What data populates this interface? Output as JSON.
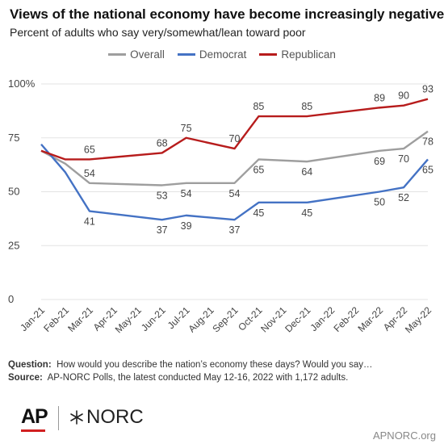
{
  "header": {
    "title": "Views of the national economy have become increasingly negative",
    "subtitle": "Percent of adults who say very/somewhat/lean toward poor"
  },
  "footer": {
    "question_label": "Question:",
    "question_text": "How would you describe the nation’s economy these days? Would you say…",
    "source_label": "Source:",
    "source_text": "AP-NORC Polls, the latest conducted May 12-16, 2022 with 1,172 adults.",
    "logo_ap": "AP",
    "logo_norc": "NORC",
    "url": "APNORC.org"
  },
  "chart_data": {
    "type": "line",
    "categories": [
      "Jan-21",
      "Feb-21",
      "Mar-21",
      "Apr-21",
      "May-21",
      "Jun-21",
      "Jul-21",
      "Aug-21",
      "Sep-21",
      "Oct-21",
      "Nov-21",
      "Dec-21",
      "Jan-22",
      "Feb-22",
      "Mar-22",
      "Apr-22",
      "May-22"
    ],
    "ylim": [
      0,
      100
    ],
    "yticks": [
      0,
      25,
      50,
      75,
      100
    ],
    "ytick_labels": [
      "0",
      "25",
      "50",
      "75",
      "100%"
    ],
    "grid": true,
    "legend_position": "top-center",
    "series": [
      {
        "name": "Overall",
        "color": "#9e9e9e",
        "points": [
          {
            "x": "Jan-21",
            "y": 69
          },
          {
            "x": "Feb-21",
            "y": 63
          },
          {
            "x": "Mar-21",
            "y": 54
          },
          {
            "x": "Jun-21",
            "y": 53
          },
          {
            "x": "Jul-21",
            "y": 54
          },
          {
            "x": "Sep-21",
            "y": 54
          },
          {
            "x": "Oct-21",
            "y": 65
          },
          {
            "x": "Dec-21",
            "y": 64
          },
          {
            "x": "Mar-22",
            "y": 69
          },
          {
            "x": "Apr-22",
            "y": 70
          },
          {
            "x": "May-22",
            "y": 78
          }
        ],
        "labels": [
          {
            "x": "Mar-21",
            "y": 54,
            "text": "54",
            "pos": "above"
          },
          {
            "x": "Jun-21",
            "y": 53,
            "text": "53",
            "pos": "below"
          },
          {
            "x": "Jul-21",
            "y": 54,
            "text": "54",
            "pos": "below"
          },
          {
            "x": "Sep-21",
            "y": 54,
            "text": "54",
            "pos": "below"
          },
          {
            "x": "Oct-21",
            "y": 65,
            "text": "65",
            "pos": "below"
          },
          {
            "x": "Dec-21",
            "y": 64,
            "text": "64",
            "pos": "below"
          },
          {
            "x": "Mar-22",
            "y": 69,
            "text": "69",
            "pos": "below"
          },
          {
            "x": "Apr-22",
            "y": 70,
            "text": "70",
            "pos": "below"
          },
          {
            "x": "May-22",
            "y": 78,
            "text": "78",
            "pos": "below"
          }
        ]
      },
      {
        "name": "Democrat",
        "color": "#4472c4",
        "points": [
          {
            "x": "Jan-21",
            "y": 72
          },
          {
            "x": "Feb-21",
            "y": 59
          },
          {
            "x": "Mar-21",
            "y": 41
          },
          {
            "x": "Jun-21",
            "y": 37
          },
          {
            "x": "Jul-21",
            "y": 39
          },
          {
            "x": "Sep-21",
            "y": 37
          },
          {
            "x": "Oct-21",
            "y": 45
          },
          {
            "x": "Dec-21",
            "y": 45
          },
          {
            "x": "Mar-22",
            "y": 50
          },
          {
            "x": "Apr-22",
            "y": 52
          },
          {
            "x": "May-22",
            "y": 65
          }
        ],
        "labels": [
          {
            "x": "Mar-21",
            "y": 41,
            "text": "41",
            "pos": "below"
          },
          {
            "x": "Jun-21",
            "y": 37,
            "text": "37",
            "pos": "below"
          },
          {
            "x": "Jul-21",
            "y": 39,
            "text": "39",
            "pos": "below"
          },
          {
            "x": "Sep-21",
            "y": 37,
            "text": "37",
            "pos": "below"
          },
          {
            "x": "Oct-21",
            "y": 45,
            "text": "45",
            "pos": "below"
          },
          {
            "x": "Dec-21",
            "y": 45,
            "text": "45",
            "pos": "below"
          },
          {
            "x": "Mar-22",
            "y": 50,
            "text": "50",
            "pos": "below"
          },
          {
            "x": "Apr-22",
            "y": 52,
            "text": "52",
            "pos": "below"
          },
          {
            "x": "May-22",
            "y": 65,
            "text": "65",
            "pos": "below"
          }
        ]
      },
      {
        "name": "Republican",
        "color": "#b71c1c",
        "points": [
          {
            "x": "Jan-21",
            "y": 69
          },
          {
            "x": "Feb-21",
            "y": 65
          },
          {
            "x": "Mar-21",
            "y": 65
          },
          {
            "x": "Jun-21",
            "y": 68
          },
          {
            "x": "Jul-21",
            "y": 75
          },
          {
            "x": "Sep-21",
            "y": 70
          },
          {
            "x": "Oct-21",
            "y": 85
          },
          {
            "x": "Dec-21",
            "y": 85
          },
          {
            "x": "Mar-22",
            "y": 89
          },
          {
            "x": "Apr-22",
            "y": 90
          },
          {
            "x": "May-22",
            "y": 93
          }
        ],
        "labels": [
          {
            "x": "Mar-21",
            "y": 65,
            "text": "65",
            "pos": "above"
          },
          {
            "x": "Jun-21",
            "y": 68,
            "text": "68",
            "pos": "above"
          },
          {
            "x": "Jul-21",
            "y": 75,
            "text": "75",
            "pos": "above"
          },
          {
            "x": "Sep-21",
            "y": 70,
            "text": "70",
            "pos": "above"
          },
          {
            "x": "Oct-21",
            "y": 85,
            "text": "85",
            "pos": "above"
          },
          {
            "x": "Dec-21",
            "y": 85,
            "text": "85",
            "pos": "above"
          },
          {
            "x": "Mar-22",
            "y": 89,
            "text": "89",
            "pos": "above"
          },
          {
            "x": "Apr-22",
            "y": 90,
            "text": "90",
            "pos": "above"
          },
          {
            "x": "May-22",
            "y": 93,
            "text": "93",
            "pos": "above"
          }
        ]
      }
    ]
  }
}
